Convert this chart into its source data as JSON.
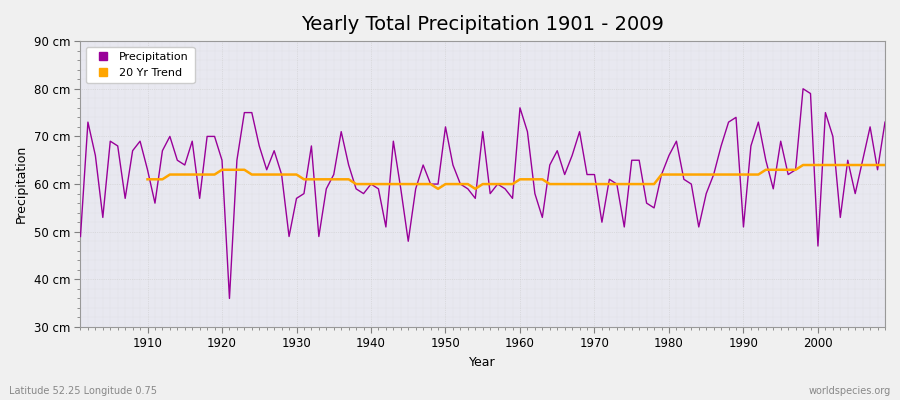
{
  "title": "Yearly Total Precipitation 1901 - 2009",
  "xlabel": "Year",
  "ylabel": "Precipitation",
  "xlim": [
    1901,
    2009
  ],
  "ylim": [
    30,
    90
  ],
  "yticks": [
    30,
    40,
    50,
    60,
    70,
    80,
    90
  ],
  "ytick_labels": [
    "30 cm",
    "40 cm",
    "50 cm",
    "60 cm",
    "70 cm",
    "80 cm",
    "90 cm"
  ],
  "xticks": [
    1910,
    1920,
    1930,
    1940,
    1950,
    1960,
    1970,
    1980,
    1990,
    2000
  ],
  "precip_color": "#990099",
  "trend_color": "#FFA500",
  "fig_bg_color": "#f0f0f0",
  "plot_bg_color": "#e8e8f0",
  "title_fontsize": 14,
  "legend_label_precip": "Precipitation",
  "legend_label_trend": "20 Yr Trend",
  "bottom_left_text": "Latitude 52.25 Longitude 0.75",
  "bottom_right_text": "worldspecies.org",
  "years": [
    1901,
    1902,
    1903,
    1904,
    1905,
    1906,
    1907,
    1908,
    1909,
    1910,
    1911,
    1912,
    1913,
    1914,
    1915,
    1916,
    1917,
    1918,
    1919,
    1920,
    1921,
    1922,
    1923,
    1924,
    1925,
    1926,
    1927,
    1928,
    1929,
    1930,
    1931,
    1932,
    1933,
    1934,
    1935,
    1936,
    1937,
    1938,
    1939,
    1940,
    1941,
    1942,
    1943,
    1944,
    1945,
    1946,
    1947,
    1948,
    1949,
    1950,
    1951,
    1952,
    1953,
    1954,
    1955,
    1956,
    1957,
    1958,
    1959,
    1960,
    1961,
    1962,
    1963,
    1964,
    1965,
    1966,
    1967,
    1968,
    1969,
    1970,
    1971,
    1972,
    1973,
    1974,
    1975,
    1976,
    1977,
    1978,
    1979,
    1980,
    1981,
    1982,
    1983,
    1984,
    1985,
    1986,
    1987,
    1988,
    1989,
    1990,
    1991,
    1992,
    1993,
    1994,
    1995,
    1996,
    1997,
    1998,
    1999,
    2000,
    2001,
    2002,
    2003,
    2004,
    2005,
    2006,
    2007,
    2008,
    2009
  ],
  "precip": [
    49,
    73,
    66,
    53,
    69,
    68,
    57,
    67,
    69,
    63,
    56,
    67,
    70,
    65,
    64,
    69,
    57,
    70,
    70,
    65,
    36,
    65,
    75,
    75,
    68,
    63,
    67,
    62,
    49,
    57,
    58,
    68,
    49,
    59,
    62,
    71,
    64,
    59,
    58,
    60,
    59,
    51,
    69,
    59,
    48,
    59,
    64,
    60,
    60,
    72,
    64,
    60,
    59,
    57,
    71,
    58,
    60,
    59,
    57,
    76,
    71,
    58,
    53,
    64,
    67,
    62,
    66,
    71,
    62,
    62,
    52,
    61,
    60,
    51,
    65,
    65,
    56,
    55,
    62,
    66,
    69,
    61,
    60,
    51,
    58,
    62,
    68,
    73,
    74,
    51,
    68,
    73,
    65,
    59,
    69,
    62,
    63,
    80,
    79,
    47,
    75,
    70,
    53,
    65,
    58,
    65,
    72,
    63,
    73
  ],
  "trend_years": [
    1910,
    1911,
    1912,
    1913,
    1914,
    1915,
    1916,
    1917,
    1918,
    1919,
    1920,
    1921,
    1922,
    1923,
    1924,
    1925,
    1926,
    1927,
    1928,
    1929,
    1930,
    1931,
    1932,
    1933,
    1934,
    1935,
    1936,
    1937,
    1938,
    1939,
    1940,
    1941,
    1942,
    1943,
    1944,
    1945,
    1946,
    1947,
    1948,
    1949,
    1950,
    1951,
    1952,
    1953,
    1954,
    1955,
    1956,
    1957,
    1958,
    1959,
    1960,
    1961,
    1962,
    1963,
    1964,
    1965,
    1966,
    1967,
    1968,
    1969,
    1970,
    1971,
    1972,
    1973,
    1974,
    1975,
    1976,
    1977,
    1978,
    1979,
    1980,
    1981,
    1982,
    1983,
    1984,
    1985,
    1986,
    1987,
    1988,
    1989,
    1990,
    1991,
    1992,
    1993,
    1994,
    1995,
    1996,
    1997,
    1998,
    1999,
    2000,
    2001,
    2002,
    2003,
    2004,
    2005,
    2006,
    2007,
    2008,
    2009
  ],
  "trend": [
    61,
    61,
    61,
    62,
    62,
    62,
    62,
    62,
    62,
    62,
    63,
    63,
    63,
    63,
    62,
    62,
    62,
    62,
    62,
    62,
    62,
    61,
    61,
    61,
    61,
    61,
    61,
    61,
    60,
    60,
    60,
    60,
    60,
    60,
    60,
    60,
    60,
    60,
    60,
    59,
    60,
    60,
    60,
    60,
    59,
    60,
    60,
    60,
    60,
    60,
    61,
    61,
    61,
    61,
    60,
    60,
    60,
    60,
    60,
    60,
    60,
    60,
    60,
    60,
    60,
    60,
    60,
    60,
    60,
    62,
    62,
    62,
    62,
    62,
    62,
    62,
    62,
    62,
    62,
    62,
    62,
    62,
    62,
    63,
    63,
    63,
    63,
    63,
    64,
    64,
    64,
    64,
    64,
    64,
    64,
    64,
    64,
    64,
    64,
    64
  ]
}
